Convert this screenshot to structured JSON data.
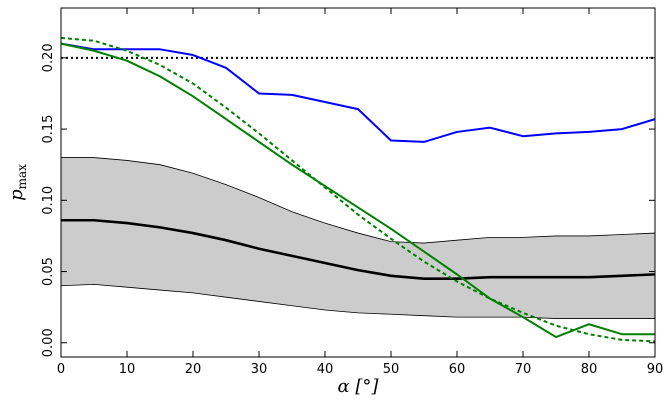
{
  "chart_data": {
    "type": "line",
    "xlabel": "α [°]",
    "ylabel": "p_max",
    "xlim": [
      0,
      90
    ],
    "ylim": [
      -0.01,
      0.235
    ],
    "grid": false,
    "x_ticks": [
      0,
      10,
      20,
      30,
      40,
      50,
      60,
      70,
      80,
      90
    ],
    "x_tick_labels": [
      "0",
      "10",
      "20",
      "30",
      "40",
      "50",
      "60",
      "70",
      "80",
      "90"
    ],
    "y_ticks": [
      0.0,
      0.05,
      0.1,
      0.15,
      0.2
    ],
    "y_tick_labels": [
      "0.00",
      "0.05",
      "0.10",
      "0.15",
      "0.20"
    ],
    "x": [
      0,
      5,
      10,
      15,
      20,
      25,
      30,
      35,
      40,
      45,
      50,
      55,
      60,
      65,
      70,
      75,
      80,
      85,
      90
    ],
    "series": [
      {
        "style": "solid",
        "color": "#0000ff",
        "values": [
          0.21,
          0.206,
          0.206,
          0.206,
          0.202,
          0.193,
          0.175,
          0.174,
          0.169,
          0.164,
          0.142,
          0.141,
          0.148,
          0.151,
          0.145,
          0.147,
          0.148,
          0.15,
          0.157
        ]
      },
      {
        "style": "solid",
        "color": "#008000",
        "values": [
          0.21,
          0.205,
          0.198,
          0.187,
          0.173,
          0.157,
          0.141,
          0.125,
          0.11,
          0.095,
          0.08,
          0.064,
          0.048,
          0.031,
          0.018,
          0.004,
          0.013,
          0.006,
          0.006
        ]
      },
      {
        "style": "dashed",
        "color": "#008000",
        "values": [
          0.214,
          0.212,
          0.205,
          0.195,
          0.182,
          0.165,
          0.147,
          0.128,
          0.109,
          0.09,
          0.073,
          0.057,
          0.043,
          0.031,
          0.021,
          0.012,
          0.006,
          0.002,
          0.001
        ]
      },
      {
        "style": "dotted",
        "color": "#000000",
        "values": [
          0.2,
          0.2,
          0.2,
          0.2,
          0.2,
          0.2,
          0.2,
          0.2,
          0.2,
          0.2,
          0.2,
          0.2,
          0.2,
          0.2,
          0.2,
          0.2,
          0.2,
          0.2,
          0.2
        ]
      },
      {
        "style": "solid-thick",
        "color": "#000000",
        "values": [
          0.086,
          0.086,
          0.084,
          0.081,
          0.077,
          0.072,
          0.066,
          0.061,
          0.056,
          0.051,
          0.047,
          0.045,
          0.045,
          0.046,
          0.046,
          0.046,
          0.046,
          0.047,
          0.048
        ]
      }
    ],
    "band": {
      "fill": "#cccccc",
      "upper": [
        0.13,
        0.13,
        0.128,
        0.125,
        0.119,
        0.111,
        0.102,
        0.092,
        0.084,
        0.077,
        0.071,
        0.07,
        0.072,
        0.074,
        0.074,
        0.075,
        0.075,
        0.076,
        0.077
      ],
      "lower": [
        0.04,
        0.041,
        0.039,
        0.037,
        0.035,
        0.032,
        0.029,
        0.026,
        0.023,
        0.021,
        0.02,
        0.019,
        0.018,
        0.018,
        0.018,
        0.017,
        0.017,
        0.017,
        0.017
      ]
    }
  }
}
